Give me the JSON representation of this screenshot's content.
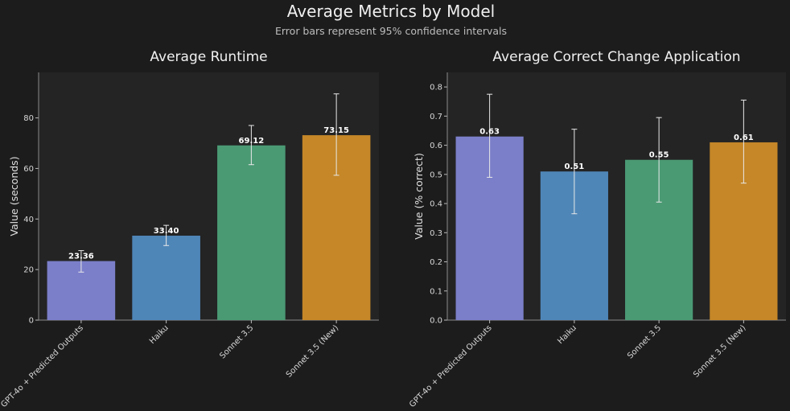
{
  "figure": {
    "title": "Average Metrics by Model",
    "subtitle": "Error bars represent 95% confidence intervals"
  },
  "chart_data": [
    {
      "type": "bar",
      "title": "Average Runtime",
      "xlabel": "",
      "ylabel": "Value (seconds)",
      "ylim": [
        0,
        98
      ],
      "yticks": [
        "0",
        "20",
        "40",
        "60",
        "80"
      ],
      "categories": [
        "GPT-4o + Predicted Outputs",
        "Haiku",
        "Sonnet 3.5",
        "Sonnet 3.5 (New)"
      ],
      "values": [
        23.36,
        33.4,
        69.12,
        73.15
      ],
      "value_labels": [
        "23.36",
        "33.40",
        "69.12",
        "73.15"
      ],
      "error_low": [
        19.0,
        29.5,
        61.5,
        57.3
      ],
      "error_high": [
        27.5,
        37.5,
        77.0,
        89.5
      ],
      "colors": [
        "#7b7fc9",
        "#4f86b8",
        "#4a9a74",
        "#c58728"
      ],
      "grid": false
    },
    {
      "type": "bar",
      "title": "Average Correct Change Application",
      "xlabel": "",
      "ylabel": "Value (% correct)",
      "ylim": [
        0,
        0.85
      ],
      "yticks": [
        "0.0",
        "0.1",
        "0.2",
        "0.3",
        "0.4",
        "0.5",
        "0.6",
        "0.7",
        "0.8"
      ],
      "categories": [
        "GPT-4o + Predicted Outputs",
        "Haiku",
        "Sonnet 3.5",
        "Sonnet 3.5 (New)"
      ],
      "values": [
        0.63,
        0.51,
        0.55,
        0.61
      ],
      "value_labels": [
        "0.63",
        "0.51",
        "0.55",
        "0.61"
      ],
      "error_low": [
        0.49,
        0.365,
        0.405,
        0.47
      ],
      "error_high": [
        0.775,
        0.655,
        0.695,
        0.755
      ],
      "colors": [
        "#7b7fc9",
        "#4f86b8",
        "#4a9a74",
        "#c58728"
      ],
      "grid": false
    }
  ]
}
